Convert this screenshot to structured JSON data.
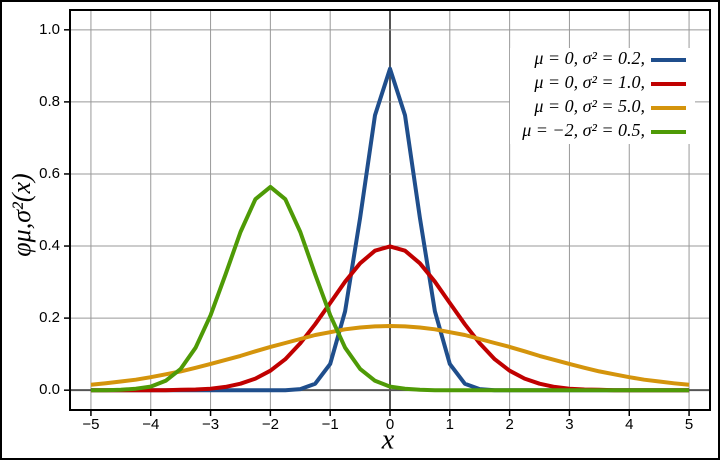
{
  "chart_data": {
    "type": "line",
    "xlabel": "x",
    "ylabel": "φμ,σ²(x)",
    "x": [
      -5,
      -4.75,
      -4.5,
      -4.25,
      -4,
      -3.75,
      -3.5,
      -3.25,
      -3,
      -2.75,
      -2.5,
      -2.25,
      -2,
      -1.75,
      -1.5,
      -1.25,
      -1,
      -0.75,
      -0.5,
      -0.25,
      0,
      0.25,
      0.5,
      0.75,
      1,
      1.25,
      1.5,
      1.75,
      2,
      2.25,
      2.5,
      2.75,
      3,
      3.25,
      3.5,
      3.75,
      4,
      4.25,
      4.5,
      4.75,
      5
    ],
    "series": [
      {
        "name": "μ = 0,    σ² = 0.2,",
        "color": "#1f4e8c",
        "values": [
          0,
          0,
          0,
          0,
          0,
          0,
          0,
          0,
          0,
          0,
          0,
          0,
          0,
          0,
          0.003,
          0.018,
          0.073,
          0.219,
          0.478,
          0.763,
          0.892,
          0.763,
          0.478,
          0.219,
          0.073,
          0.018,
          0.003,
          0,
          0,
          0,
          0,
          0,
          0,
          0,
          0,
          0,
          0,
          0,
          0,
          0,
          0
        ]
      },
      {
        "name": "μ = 0,    σ² = 1.0,",
        "color": "#c00000",
        "values": [
          0,
          0,
          0,
          0,
          0,
          0,
          0.001,
          0.002,
          0.004,
          0.009,
          0.018,
          0.032,
          0.054,
          0.086,
          0.13,
          0.183,
          0.242,
          0.301,
          0.352,
          0.387,
          0.399,
          0.387,
          0.352,
          0.301,
          0.242,
          0.183,
          0.13,
          0.086,
          0.054,
          0.032,
          0.018,
          0.009,
          0.004,
          0.002,
          0.001,
          0,
          0,
          0,
          0,
          0,
          0
        ]
      },
      {
        "name": "μ = 0,    σ² = 5.0,",
        "color": "#d4940c",
        "values": [
          0.015,
          0.019,
          0.024,
          0.029,
          0.036,
          0.044,
          0.052,
          0.062,
          0.073,
          0.084,
          0.095,
          0.108,
          0.12,
          0.131,
          0.142,
          0.153,
          0.161,
          0.169,
          0.174,
          0.177,
          0.178,
          0.177,
          0.174,
          0.169,
          0.161,
          0.153,
          0.142,
          0.131,
          0.12,
          0.108,
          0.095,
          0.084,
          0.073,
          0.062,
          0.052,
          0.044,
          0.036,
          0.029,
          0.024,
          0.019,
          0.015
        ]
      },
      {
        "name": "μ = −2, σ² = 0.5,",
        "color": "#4e9a06",
        "values": [
          0,
          0,
          0.001,
          0.004,
          0.01,
          0.026,
          0.059,
          0.118,
          0.208,
          0.321,
          0.439,
          0.53,
          0.564,
          0.53,
          0.439,
          0.321,
          0.208,
          0.118,
          0.059,
          0.026,
          0.01,
          0.004,
          0.001,
          0,
          0,
          0,
          0,
          0,
          0,
          0,
          0,
          0,
          0,
          0,
          0,
          0,
          0,
          0,
          0,
          0,
          0
        ]
      }
    ],
    "xlim": [
      -5.35,
      5.35
    ],
    "ylim": [
      -0.055,
      1.055
    ],
    "xticks": [
      {
        "value": -5,
        "label": "−5"
      },
      {
        "value": -4,
        "label": "−4"
      },
      {
        "value": -3,
        "label": "−3"
      },
      {
        "value": -2,
        "label": "−2"
      },
      {
        "value": -1,
        "label": "−1"
      },
      0,
      1,
      2,
      3,
      4,
      5
    ],
    "yticks": [
      {
        "value": 0,
        "label": "0.0"
      },
      0.2,
      0.4,
      0.6,
      0.8,
      {
        "value": 1,
        "label": "1.0"
      }
    ],
    "grid": true,
    "legend": "upper right"
  }
}
